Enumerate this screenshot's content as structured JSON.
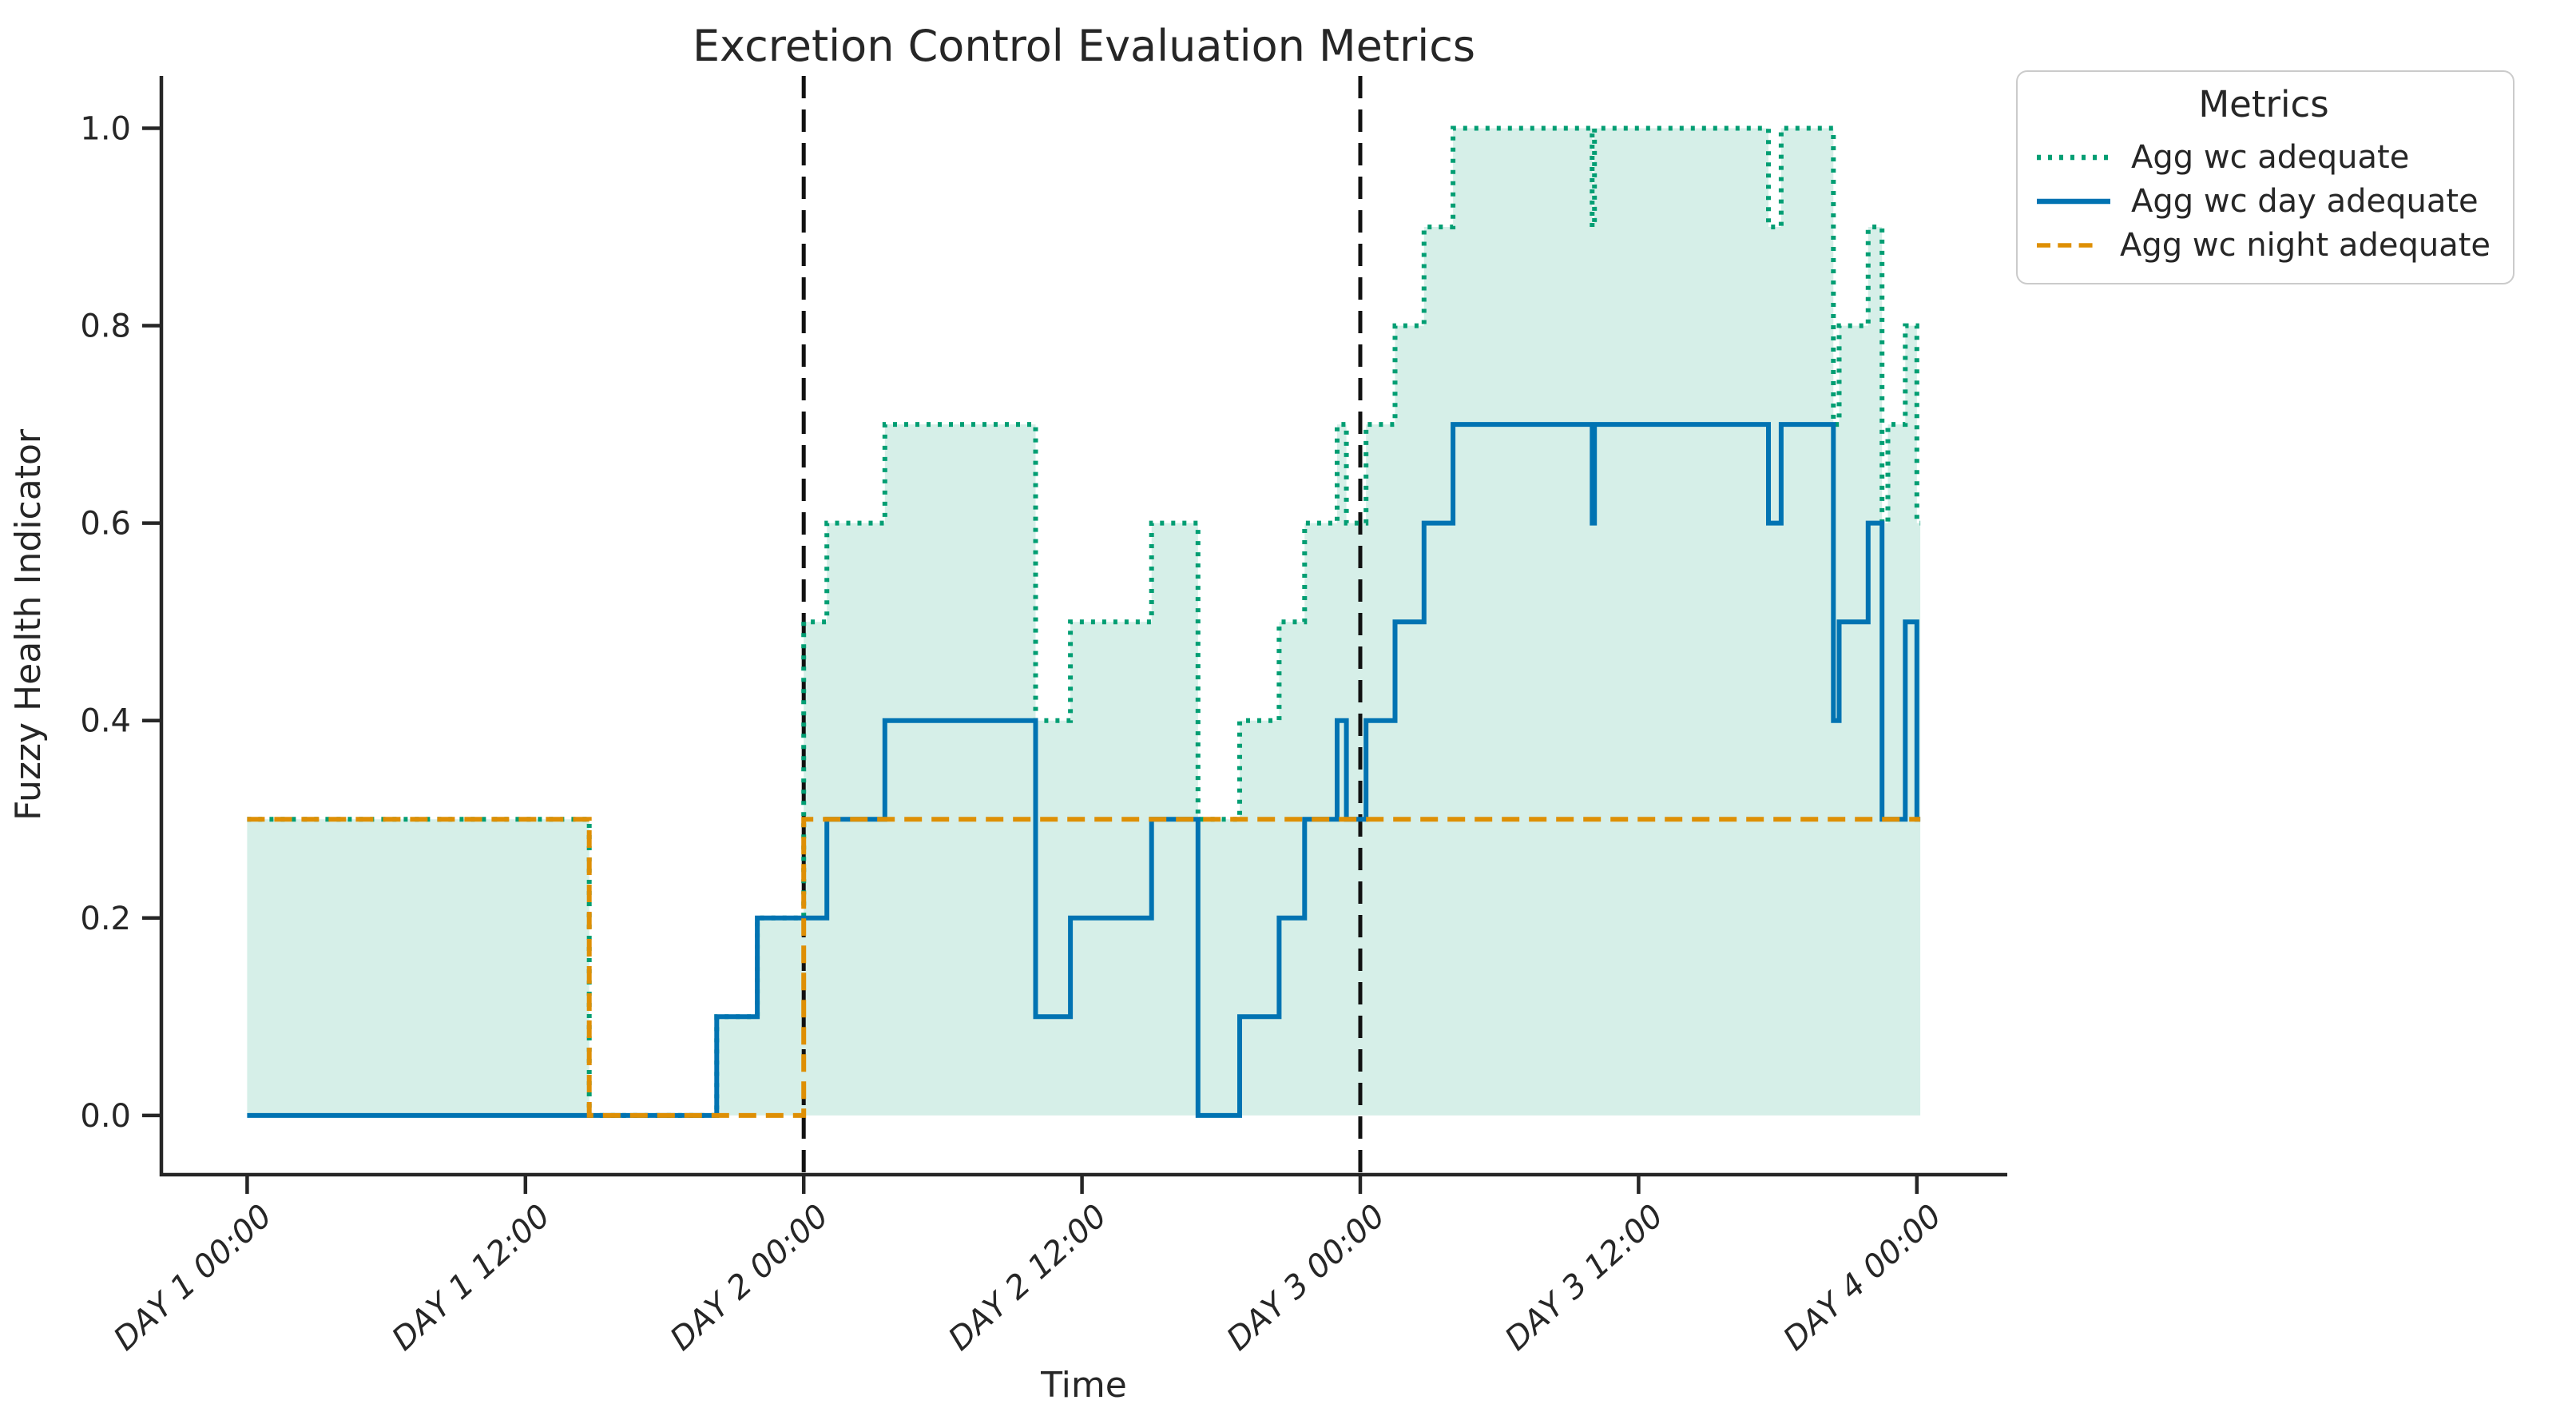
{
  "figure": {
    "title": "Excretion Control Evaluation Metrics"
  },
  "legend": {
    "title": "Metrics",
    "items": [
      {
        "label": "Agg wc adequate",
        "color": "#029e73",
        "style": "dotted"
      },
      {
        "label": "Agg wc day adequate",
        "color": "#0173b2",
        "style": "solid"
      },
      {
        "label": "Agg wc night adequate",
        "color": "#de8f05",
        "style": "dashed"
      }
    ]
  },
  "chart_data": {
    "type": "line",
    "title": "Excretion Control Evaluation Metrics",
    "xlabel": "Time",
    "ylabel": "Fuzzy Health Indicator",
    "x_unit": "hours since DAY 1 00:00",
    "x_ticks": [
      0,
      12,
      24,
      36,
      48,
      60,
      72
    ],
    "x_tick_labels": [
      "DAY 1 00:00",
      "DAY 1 12:00",
      "DAY 2 00:00",
      "DAY 2 12:00",
      "DAY 3 00:00",
      "DAY 3 12:00",
      "DAY 4 00:00"
    ],
    "y_ticks": [
      0.0,
      0.2,
      0.4,
      0.6,
      0.8,
      1.0
    ],
    "y_tick_labels": [
      "0.0",
      "0.2",
      "0.4",
      "0.6",
      "0.8",
      "1.0"
    ],
    "xlim": [
      -3.7,
      75.9
    ],
    "ylim": [
      -0.06,
      1.053
    ],
    "grid": false,
    "legend_position": "outside-right",
    "vlines": [
      24,
      48
    ],
    "vline_color": "#111111",
    "axis_color": "#262626",
    "series": [
      {
        "name": "Agg wc adequate",
        "color": "#029e73",
        "style": "dotted",
        "fill": true,
        "fill_alpha": 0.16,
        "t": [
          0,
          14.75,
          20.25,
          22,
          24,
          25,
          27.5,
          34,
          35.5,
          39,
          41,
          42.8,
          44.5,
          45.6,
          47,
          47.4,
          48.25,
          49.5,
          50.75,
          52,
          58,
          58.1,
          65.6,
          66.15,
          68.4,
          68.65,
          69.9,
          70.5,
          70.75,
          71.5,
          72
        ],
        "v": [
          0.3,
          0.0,
          0.1,
          0.2,
          0.5,
          0.6,
          0.7,
          0.4,
          0.5,
          0.6,
          0.3,
          0.4,
          0.5,
          0.6,
          0.7,
          0.6,
          0.7,
          0.8,
          0.9,
          1.0,
          0.9,
          1.0,
          0.9,
          1.0,
          0.7,
          0.8,
          0.9,
          0.6,
          0.7,
          0.8,
          0.6
        ],
        "end": 72.15
      },
      {
        "name": "Agg wc day adequate",
        "color": "#0173b2",
        "style": "solid",
        "fill": false,
        "t": [
          0,
          20.25,
          22,
          25,
          27.5,
          34,
          35.5,
          39,
          41,
          42.8,
          44.5,
          45.6,
          47,
          47.4,
          48.25,
          49.5,
          50.75,
          52,
          58,
          58.1,
          65.6,
          66.15,
          68.4,
          68.65,
          69.9,
          70.5,
          71.5,
          72
        ],
        "v": [
          0.0,
          0.1,
          0.2,
          0.3,
          0.4,
          0.1,
          0.2,
          0.3,
          0.0,
          0.1,
          0.2,
          0.3,
          0.4,
          0.3,
          0.4,
          0.5,
          0.6,
          0.7,
          0.6,
          0.7,
          0.6,
          0.7,
          0.4,
          0.5,
          0.6,
          0.3,
          0.5,
          0.3
        ],
        "end": 72.15
      },
      {
        "name": "Agg wc night adequate",
        "color": "#de8f05",
        "style": "dashed",
        "fill": false,
        "t": [
          0,
          14.75,
          24
        ],
        "v": [
          0.3,
          0.0,
          0.3
        ],
        "end": 72.15
      }
    ]
  }
}
